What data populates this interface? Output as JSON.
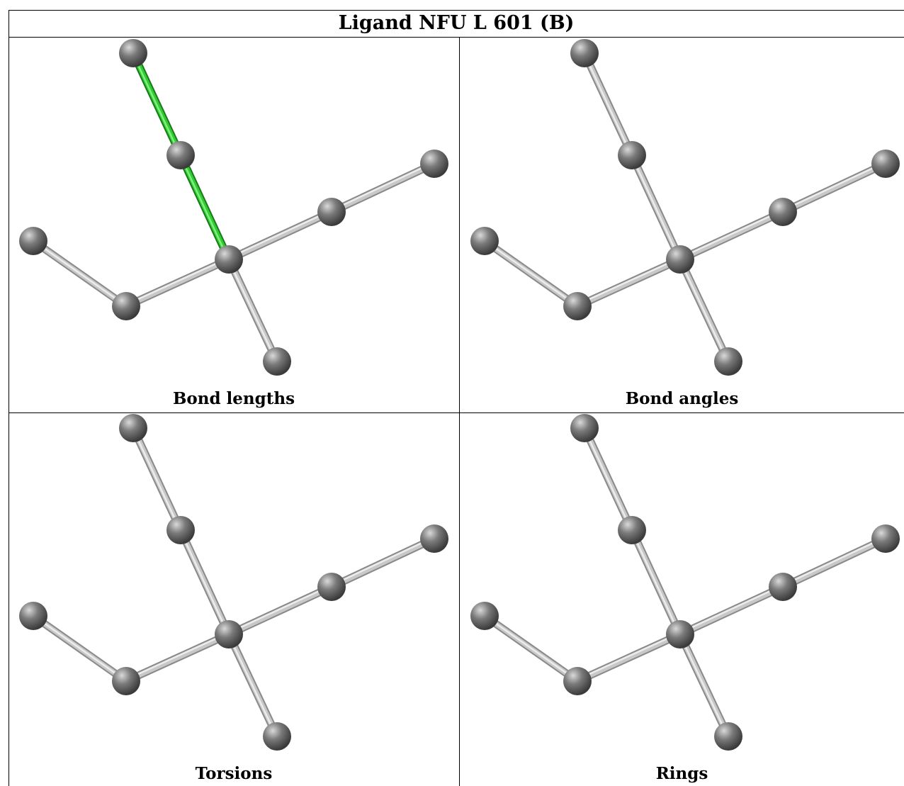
{
  "title": "Ligand NFU L 601 (B)",
  "panels": [
    {
      "caption": "Bond lengths",
      "highlight": [
        0,
        1
      ],
      "highlight_color": "#33cc33"
    },
    {
      "caption": "Bond angles",
      "highlight": [],
      "highlight_color": "#33cc33"
    },
    {
      "caption": "Torsions",
      "highlight": [],
      "highlight_color": "#33cc33"
    },
    {
      "caption": "Rings",
      "highlight": [],
      "highlight_color": "#33cc33"
    }
  ],
  "colors": {
    "atom": "#7a7a7a",
    "bond": "#c8c8c8",
    "border": "#000000"
  }
}
